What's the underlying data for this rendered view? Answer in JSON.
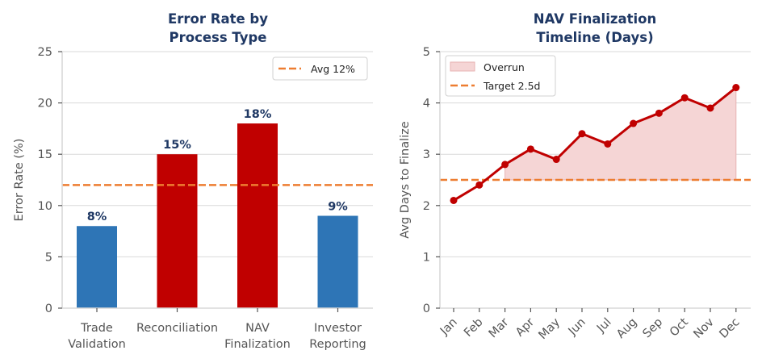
{
  "colors": {
    "title": "#1f3864",
    "bar_normal": "#2e75b6",
    "bar_high": "#c00000",
    "reference_line": "#ed7d31",
    "line": "#c00000",
    "fill": "#f5d5d5",
    "fill_edge": "#e7b3b3"
  },
  "chart_data": [
    {
      "type": "bar",
      "title_lines": [
        "Error Rate by",
        "Process Type"
      ],
      "xlabel": "",
      "ylabel": "Error Rate (%)",
      "ylim": [
        0,
        25
      ],
      "yticks": [
        0,
        5,
        10,
        15,
        20,
        25
      ],
      "categories": [
        [
          "Trade",
          "Validation"
        ],
        [
          "Reconciliation"
        ],
        [
          "NAV",
          "Finalization"
        ],
        [
          "Investor",
          "Reporting"
        ]
      ],
      "values": [
        8,
        15,
        18,
        9
      ],
      "value_labels": [
        "8%",
        "15%",
        "18%",
        "9%"
      ],
      "highlight": [
        false,
        true,
        true,
        false
      ],
      "reference_line": {
        "value": 12,
        "label": "Avg 12%"
      },
      "grid": true,
      "legend": {
        "placement": "top-right",
        "entries": [
          "Avg 12%"
        ]
      }
    },
    {
      "type": "line",
      "title_lines": [
        "NAV Finalization",
        "Timeline (Days)"
      ],
      "xlabel": "",
      "ylabel": "Avg Days to Finalize",
      "ylim": [
        0,
        5
      ],
      "yticks": [
        0,
        1,
        2,
        3,
        4,
        5
      ],
      "x": [
        "Jan",
        "Feb",
        "Mar",
        "Apr",
        "May",
        "Jun",
        "Jul",
        "Aug",
        "Sep",
        "Oct",
        "Nov",
        "Dec"
      ],
      "series": [
        {
          "name": "Avg Days to Finalize",
          "values": [
            2.1,
            2.4,
            2.8,
            3.1,
            2.9,
            3.4,
            3.2,
            3.6,
            3.8,
            4.1,
            3.9,
            4.3
          ]
        }
      ],
      "fill_above_target": {
        "label": "Overrun"
      },
      "reference_line": {
        "value": 2.5,
        "label": "Target 2.5d"
      },
      "grid": true,
      "legend": {
        "placement": "top-left",
        "entries": [
          "Overrun",
          "Target 2.5d"
        ]
      }
    }
  ]
}
